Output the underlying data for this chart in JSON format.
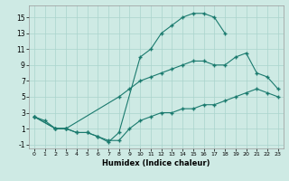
{
  "xlabel": "Humidex (Indice chaleur)",
  "bg_color": "#ceeae4",
  "grid_color": "#aad4cc",
  "line_color": "#1a7a6e",
  "marker": "+",
  "xlim": [
    -0.5,
    23.5
  ],
  "ylim": [
    -1.5,
    16.5
  ],
  "xticks": [
    0,
    1,
    2,
    3,
    4,
    5,
    6,
    7,
    8,
    9,
    10,
    11,
    12,
    13,
    14,
    15,
    16,
    17,
    18,
    19,
    20,
    21,
    22,
    23
  ],
  "yticks": [
    -1,
    1,
    3,
    5,
    7,
    9,
    11,
    13,
    15
  ],
  "series": [
    {
      "x": [
        0,
        1,
        2,
        3,
        4,
        5,
        6,
        7,
        8,
        10,
        11,
        12,
        13,
        14,
        15,
        16,
        17,
        18
      ],
      "y": [
        2.5,
        2,
        1,
        1,
        0.5,
        0.5,
        0,
        -0.7,
        0.5,
        10,
        11,
        13,
        14,
        15,
        15.5,
        15.5,
        15,
        13
      ]
    },
    {
      "x": [
        0,
        2,
        3,
        8,
        9,
        10,
        11,
        12,
        13,
        14,
        15,
        16,
        17,
        18,
        19,
        20,
        21,
        22,
        23
      ],
      "y": [
        2.5,
        1,
        1,
        5,
        6,
        7,
        7.5,
        8,
        8.5,
        9,
        9.5,
        9.5,
        9,
        9,
        10,
        10.5,
        8,
        7.5,
        6
      ]
    },
    {
      "x": [
        0,
        2,
        3,
        4,
        5,
        6,
        7,
        8,
        9,
        10,
        11,
        12,
        13,
        14,
        15,
        16,
        17,
        18,
        19,
        20,
        21,
        22,
        23
      ],
      "y": [
        2.5,
        1,
        1,
        0.5,
        0.5,
        0,
        -0.5,
        -0.5,
        1,
        2,
        2.5,
        3,
        3,
        3.5,
        3.5,
        4,
        4,
        4.5,
        5,
        5.5,
        6,
        5.5,
        5
      ]
    }
  ]
}
